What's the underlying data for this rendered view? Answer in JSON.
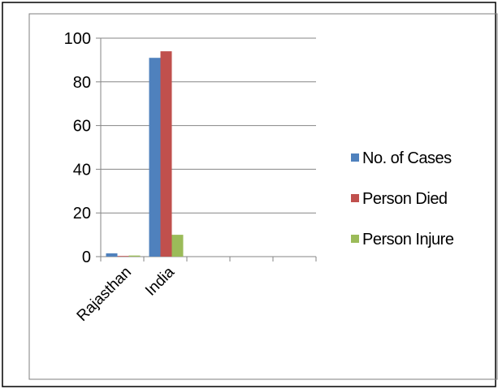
{
  "chart_data": {
    "type": "bar",
    "categories": [
      "Rajasthan",
      "India",
      "",
      "",
      ""
    ],
    "series": [
      {
        "name": "No. of Cases",
        "values": [
          1.5,
          91,
          null,
          null,
          null
        ],
        "color": "#4f81bd"
      },
      {
        "name": "Person Died",
        "values": [
          0.3,
          94,
          null,
          null,
          null
        ],
        "color": "#c0504d"
      },
      {
        "name": "Person Injure",
        "values": [
          0.5,
          10,
          null,
          null,
          null
        ],
        "color": "#9bbb59"
      }
    ],
    "yticks": [
      "0",
      "20",
      "40",
      "60",
      "80",
      "100"
    ],
    "ylim": [
      0,
      100
    ],
    "ytick_step": 20,
    "grid": true,
    "legend": "right"
  }
}
